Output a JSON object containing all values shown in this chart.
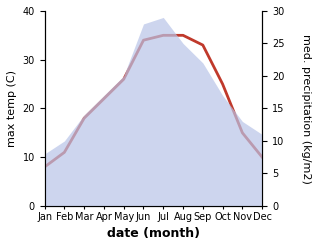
{
  "months": [
    "Jan",
    "Feb",
    "Mar",
    "Apr",
    "May",
    "Jun",
    "Jul",
    "Aug",
    "Sep",
    "Oct",
    "Nov",
    "Dec"
  ],
  "max_temp": [
    8,
    11,
    18,
    22,
    26,
    34,
    35,
    35,
    33,
    25,
    15,
    10
  ],
  "precipitation": [
    8,
    10,
    14,
    17,
    20,
    28,
    29,
    25,
    22,
    17,
    13,
    11
  ],
  "temp_color": "#c0392b",
  "precip_fill_color": "#b8c4e8",
  "temp_ylim": [
    0,
    40
  ],
  "precip_ylim": [
    0,
    30
  ],
  "temp_yticks": [
    0,
    10,
    20,
    30,
    40
  ],
  "precip_yticks": [
    0,
    5,
    10,
    15,
    20,
    25,
    30
  ],
  "xlabel": "date (month)",
  "ylabel_left": "max temp (C)",
  "ylabel_right": "med. precipitation (kg/m2)",
  "font_size_ticks": 7,
  "font_size_axlabel": 8,
  "font_size_xlabel": 9
}
